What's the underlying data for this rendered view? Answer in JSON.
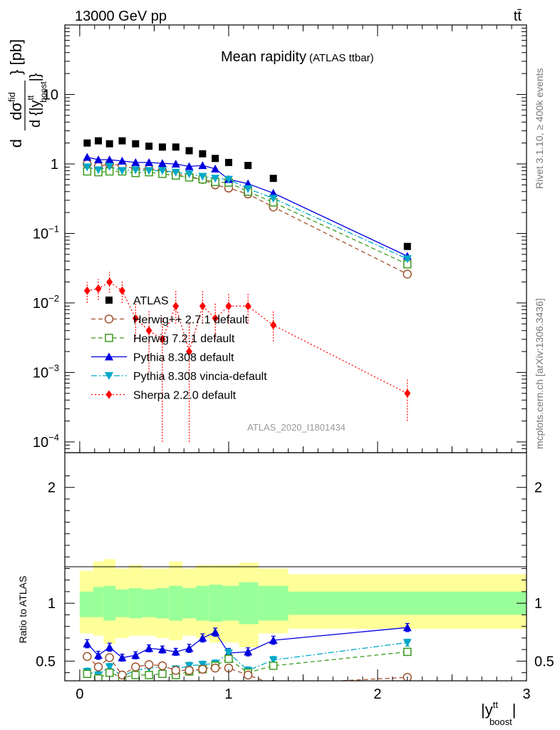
{
  "header": {
    "energy_label": "13000 GeV pp",
    "process_label": "tt̄"
  },
  "side_labels": {
    "rivet": "Rivet 3.1.10, ≥ 400k events",
    "mcplots": "mcplots.cern.ch [arXiv:1306.3436]"
  },
  "colors": {
    "ATLAS": "#000000",
    "Herwig++ 2.7.1 default": "#a0522d",
    "Herwig 7.2.1 default": "#3c9b1e",
    "Pythia 8.308 default": "#0000e0",
    "Pythia 8.308 vincia-default": "#00a8c8",
    "Sherpa 2.2.0 default": "#ff0000",
    "band_inner": "#99ff99",
    "band_outer": "#ffff99"
  },
  "chart_data": [
    {
      "type": "scatter",
      "title": "Mean rapidity",
      "subtitle": "(ATLAS ttbar)",
      "watermark": "ATLAS_2020_I1801434",
      "ylabel": "d dσ^fid / d {|y^tt_boost|} [pb]",
      "yscale": "log",
      "ylim": [
        7e-05,
        100
      ],
      "xlim": [
        -0.1,
        3.0
      ],
      "ytick_labels": [
        "10^-4",
        "10^-3",
        "10^-2",
        "10^-1",
        "1",
        "10"
      ],
      "legend": "middle-left",
      "x": [
        0.05,
        0.125,
        0.2,
        0.285,
        0.375,
        0.465,
        0.555,
        0.645,
        0.735,
        0.825,
        0.91,
        1.0,
        1.13,
        1.3,
        2.2
      ],
      "series": [
        {
          "name": "ATLAS",
          "marker": "square",
          "values": [
            2.0,
            2.15,
            1.95,
            2.15,
            1.95,
            1.8,
            1.75,
            1.75,
            1.55,
            1.4,
            1.2,
            1.05,
            0.95,
            0.62,
            0.065
          ]
        },
        {
          "name": "Herwig++ 2.7.1 default",
          "marker": "open-circle",
          "line": "dashed",
          "values": [
            1.0,
            0.92,
            1.0,
            0.95,
            0.85,
            0.85,
            0.8,
            0.72,
            0.66,
            0.6,
            0.5,
            0.45,
            0.37,
            0.24,
            0.026
          ]
        },
        {
          "name": "Herwig 7.2.1 default",
          "marker": "open-square",
          "line": "dashed",
          "values": [
            0.78,
            0.76,
            0.78,
            0.78,
            0.74,
            0.76,
            0.72,
            0.68,
            0.64,
            0.6,
            0.55,
            0.54,
            0.4,
            0.28,
            0.036
          ]
        },
        {
          "name": "Pythia 8.308 default",
          "marker": "triangle-up",
          "line": "solid",
          "values": [
            1.25,
            1.15,
            1.15,
            1.1,
            1.05,
            1.05,
            1.02,
            1.0,
            0.92,
            0.95,
            0.85,
            0.6,
            0.52,
            0.38,
            0.047
          ]
        },
        {
          "name": "Pythia 8.308 vincia-default",
          "marker": "triangle-down",
          "line": "dash-dot",
          "values": [
            0.9,
            0.82,
            0.92,
            0.8,
            0.82,
            0.8,
            0.8,
            0.76,
            0.72,
            0.66,
            0.62,
            0.6,
            0.44,
            0.32,
            0.043
          ]
        },
        {
          "name": "Sherpa 2.2.0 default",
          "marker": "diamond",
          "line": "dotted",
          "values": [
            0.015,
            0.016,
            0.02,
            0.015,
            0.006,
            0.004,
            0.003,
            0.009,
            0.002,
            0.009,
            0.006,
            0.009,
            0.009,
            0.0048,
            0.0005
          ],
          "err_lo": [
            0.005,
            0.005,
            0.006,
            0.005,
            0.003,
            0.003,
            0.0029,
            0.004,
            0.0019,
            0.004,
            0.003,
            0.004,
            0.004,
            0.002,
            0.0003
          ],
          "err_hi": [
            0.005,
            0.006,
            0.008,
            0.006,
            0.004,
            0.004,
            0.003,
            0.006,
            0.003,
            0.006,
            0.004,
            0.005,
            0.005,
            0.003,
            0.0003
          ]
        }
      ]
    },
    {
      "type": "scatter",
      "ylabel": "Ratio to ATLAS",
      "xlabel": "|y^tt_boost|",
      "ylim": [
        0.33,
        2.3
      ],
      "xlim": [
        -0.1,
        3.0
      ],
      "x_ticks": [
        0,
        1,
        2,
        3
      ],
      "y_ticks": [
        0.5,
        1,
        2
      ],
      "band_bins": [
        [
          0.0,
          0.09,
          0.88,
          1.1,
          0.74,
          1.28
        ],
        [
          0.09,
          0.16,
          0.88,
          1.14,
          0.72,
          1.36
        ],
        [
          0.16,
          0.24,
          0.85,
          1.15,
          0.65,
          1.38
        ],
        [
          0.24,
          0.33,
          0.88,
          1.12,
          0.7,
          1.3
        ],
        [
          0.33,
          0.42,
          0.87,
          1.13,
          0.72,
          1.33
        ],
        [
          0.42,
          0.51,
          0.88,
          1.12,
          0.72,
          1.3
        ],
        [
          0.51,
          0.6,
          0.87,
          1.13,
          0.7,
          1.3
        ],
        [
          0.6,
          0.69,
          0.85,
          1.15,
          0.68,
          1.36
        ],
        [
          0.69,
          0.78,
          0.87,
          1.13,
          0.72,
          1.3
        ],
        [
          0.78,
          0.87,
          0.85,
          1.15,
          0.7,
          1.33
        ],
        [
          0.87,
          0.96,
          0.84,
          1.16,
          0.66,
          1.33
        ],
        [
          0.96,
          1.07,
          0.85,
          1.15,
          0.66,
          1.33
        ],
        [
          1.07,
          1.2,
          0.82,
          1.18,
          0.62,
          1.35
        ],
        [
          1.2,
          1.4,
          0.85,
          1.15,
          0.74,
          1.3
        ],
        [
          1.4,
          3.0,
          0.9,
          1.1,
          0.78,
          1.25
        ]
      ],
      "series": [
        {
          "name": "Pythia 8.308 default",
          "values": [
            0.65,
            0.55,
            0.62,
            0.53,
            0.55,
            0.61,
            0.6,
            0.58,
            0.61,
            0.7,
            0.75,
            0.57,
            0.58,
            0.68,
            0.79
          ],
          "err": [
            0.035,
            0.035,
            0.035,
            0.03,
            0.03,
            0.03,
            0.03,
            0.03,
            0.035,
            0.035,
            0.035,
            0.04,
            0.035,
            0.035,
            0.035
          ]
        },
        {
          "name": "Pythia 8.308 vincia-default",
          "values": [
            0.41,
            0.38,
            0.45,
            0.37,
            0.42,
            0.44,
            0.45,
            0.43,
            0.46,
            0.47,
            0.48,
            0.57,
            0.42,
            0.51,
            0.66
          ],
          "err": [
            0.03,
            0.03,
            0.03,
            0.03,
            0.03,
            0.03,
            0.03,
            0.03,
            0.03,
            0.03,
            0.03,
            0.035,
            0.03,
            0.03,
            0.03
          ]
        },
        {
          "name": "Herwig 7.2.1 default",
          "values": [
            0.39,
            0.35,
            0.4,
            0.36,
            0.38,
            0.38,
            0.39,
            0.38,
            0.41,
            0.43,
            0.46,
            0.52,
            0.4,
            0.46,
            0.58
          ],
          "err": [
            0.025,
            0.025,
            0.025,
            0.025,
            0.025,
            0.025,
            0.025,
            0.025,
            0.025,
            0.025,
            0.03,
            0.03,
            0.025,
            0.03,
            0.03
          ]
        },
        {
          "name": "Herwig++ 2.7.1 default",
          "values": [
            0.54,
            0.45,
            0.53,
            0.38,
            0.45,
            0.47,
            0.46,
            0.42,
            0.42,
            0.43,
            0.44,
            0.44,
            0.38,
            0.3,
            0.36
          ],
          "err": [
            0.03,
            0.03,
            0.03,
            0.03,
            0.03,
            0.03,
            0.03,
            0.03,
            0.03,
            0.03,
            0.03,
            0.03,
            0.03,
            0.03,
            0.03
          ]
        }
      ]
    }
  ]
}
